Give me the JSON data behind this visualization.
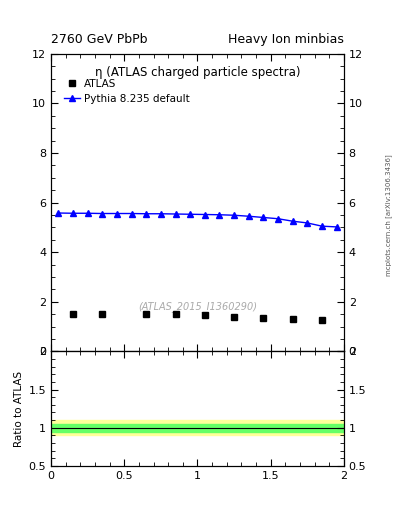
{
  "title_left": "2760 GeV PbPb",
  "title_right": "Heavy Ion minbias",
  "plot_title": "η (ATLAS charged particle spectra)",
  "watermark": "(ATLAS_2015_I1360290)",
  "side_label": "mcplots.cern.ch [arXiv:1306.3436]",
  "legend_atlas": "ATLAS",
  "legend_pythia": "Pythia 8.235 default",
  "atlas_x": [
    0.15,
    0.35,
    0.65,
    0.85,
    1.05,
    1.25,
    1.45,
    1.65,
    1.85
  ],
  "atlas_y": [
    1.5,
    1.5,
    1.5,
    1.5,
    1.45,
    1.4,
    1.35,
    1.3,
    1.25
  ],
  "pythia_x": [
    0.05,
    0.15,
    0.25,
    0.35,
    0.45,
    0.55,
    0.65,
    0.75,
    0.85,
    0.95,
    1.05,
    1.15,
    1.25,
    1.35,
    1.45,
    1.55,
    1.65,
    1.75,
    1.85,
    1.95
  ],
  "pythia_y": [
    5.58,
    5.57,
    5.57,
    5.56,
    5.56,
    5.56,
    5.55,
    5.55,
    5.54,
    5.53,
    5.52,
    5.51,
    5.49,
    5.45,
    5.4,
    5.35,
    5.25,
    5.18,
    5.05,
    5.02
  ],
  "atlas_color": "#000000",
  "pythia_color": "#0000ff",
  "ratio_green_band": [
    0.95,
    1.05
  ],
  "ratio_yellow_band": [
    0.9,
    1.1
  ],
  "ylim_main": [
    0,
    12
  ],
  "ylim_ratio": [
    0.5,
    2.0
  ],
  "xlim": [
    0,
    2
  ],
  "yticks_main": [
    0,
    2,
    4,
    6,
    8,
    10,
    12
  ],
  "yticks_ratio": [
    0.5,
    1.0,
    1.5,
    2.0
  ],
  "ytick_labels_main": [
    "0",
    "2",
    "4",
    "6",
    "8",
    "10",
    "12"
  ],
  "ytick_labels_ratio": [
    "0.5",
    "1",
    "1.5",
    "2"
  ],
  "xticks": [
    0,
    0.5,
    1.0,
    1.5,
    2.0
  ],
  "xtick_labels": [
    "0",
    "0.5",
    "1",
    "1.5",
    "2"
  ],
  "ratio_ylabel": "Ratio to ATLAS",
  "green_color": "#66ff66",
  "yellow_color": "#ffff99",
  "green_alpha": 1.0,
  "yellow_alpha": 1.0
}
